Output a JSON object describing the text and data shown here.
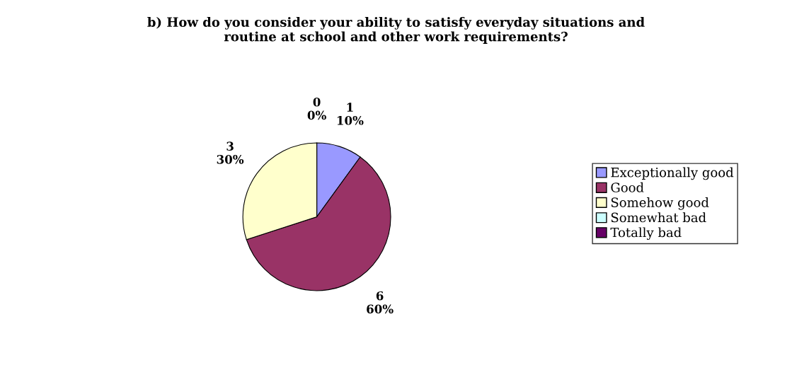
{
  "chart_data": {
    "type": "pie",
    "title": "b) How do you consider your ability to satisfy everyday situations and\nroutine at school and other work requirements?",
    "categories": [
      "Exceptionally good",
      "Good",
      "Somehow good",
      "Somewhat bad",
      "Totally bad"
    ],
    "values": [
      1,
      6,
      3,
      0,
      0
    ],
    "colors": [
      "#9999ff",
      "#993366",
      "#ffffcc",
      "#ccffff",
      "#660066"
    ],
    "value_labels": [
      "1\n10%",
      "6\n60%",
      "3\n30%",
      "0\n0%",
      null
    ],
    "legend": "right"
  }
}
